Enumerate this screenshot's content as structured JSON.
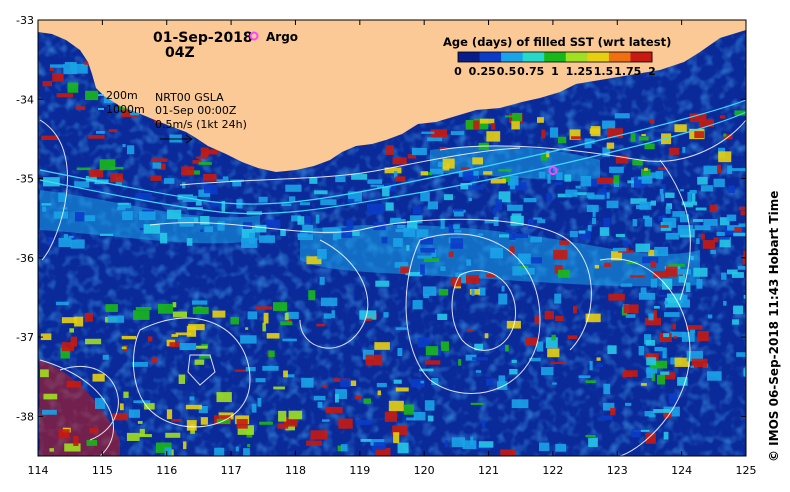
{
  "map": {
    "date": "01-Sep-2018",
    "time": "04Z",
    "argo_label": "Argo",
    "contour_200": "200m",
    "contour_1000": "1000m",
    "gsla_line1": "NRT00 GSLA",
    "gsla_line2": "01-Sep 00:00Z",
    "current_scale": "0.5m/s (1kt 24h)",
    "legend_title": "Age (days) of filled SST (wrt latest)",
    "legend_ticks": [
      "0",
      "0.25",
      "0.5",
      "0.75",
      "1",
      "1.25",
      "1.5",
      "1.75",
      "2"
    ],
    "credit": "© IMOS 06-Sep-2018 11:43 Hobart Time",
    "lat_ticks": [
      "-33",
      "-34",
      "-35",
      "-36",
      "-37",
      "-38"
    ],
    "lon_ticks": [
      "114",
      "115",
      "116",
      "117",
      "118",
      "119",
      "120",
      "121",
      "122",
      "123",
      "124",
      "125"
    ],
    "extent": {
      "lon_min": 114,
      "lon_max": 125,
      "lat_min": -38.5,
      "lat_max": -33
    },
    "argo_float": {
      "lon": 122.0,
      "lat": -34.9
    },
    "colors": {
      "land": "#fbc995",
      "ocean_base": "#0a2a9a",
      "argo": "#ff44ff",
      "colorbar": [
        "#081d8a",
        "#0a3cc8",
        "#1aa3e8",
        "#26d8c8",
        "#18b818",
        "#a0e020",
        "#e8d010",
        "#f07010",
        "#c81a10"
      ]
    }
  }
}
